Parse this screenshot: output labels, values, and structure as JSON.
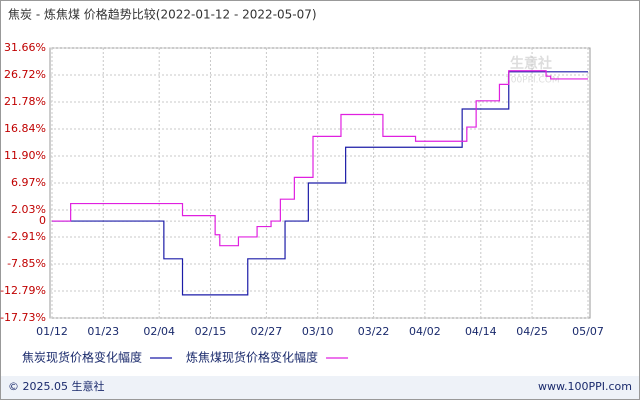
{
  "chart_data": {
    "type": "line",
    "title": "焦炭 - 炼焦煤 价格趋势比较(2022-01-12 - 2022-05-07)",
    "step": true,
    "grid": true,
    "x": [
      "01/12",
      "01/16",
      "02/05",
      "02/06",
      "02/09",
      "02/16",
      "02/17",
      "02/21",
      "02/23",
      "02/25",
      "02/28",
      "03/02",
      "03/03",
      "03/05",
      "03/08",
      "03/09",
      "03/15",
      "03/16",
      "03/24",
      "03/31",
      "04/10",
      "04/11",
      "04/13",
      "04/18",
      "04/20",
      "04/28",
      "04/29",
      "05/07"
    ],
    "series": [
      {
        "name": "焦炭现货价格变化幅度",
        "color": "#1c1ca8",
        "values": [
          0,
          0,
          -6.9,
          -6.9,
          -13.5,
          -13.5,
          -13.5,
          -13.5,
          -6.9,
          -6.9,
          -6.9,
          -6.9,
          0,
          0,
          6.97,
          6.97,
          6.97,
          13.5,
          13.5,
          13.5,
          20.5,
          20.5,
          20.5,
          20.5,
          27.3,
          27.3,
          27.3,
          27.3
        ]
      },
      {
        "name": "炼焦煤现货价格变化幅度",
        "color": "#e020e0",
        "values": [
          0,
          3.2,
          3.2,
          3.2,
          1,
          -2.5,
          -4.5,
          -2.9,
          -2.9,
          -1,
          0,
          4,
          4,
          8,
          8,
          15.5,
          19.5,
          19.5,
          15.5,
          14.6,
          14.6,
          17.2,
          22,
          25,
          27.5,
          26.5,
          26,
          26
        ]
      }
    ],
    "xticks": [
      "01/12",
      "01/23",
      "02/04",
      "02/15",
      "02/27",
      "03/10",
      "03/22",
      "04/02",
      "04/14",
      "04/25",
      "05/07"
    ],
    "ylim": [
      -17.73,
      31.66
    ],
    "yticks": [
      {
        "value": 31.66,
        "label": "31.66%"
      },
      {
        "value": 26.72,
        "label": "26.72%"
      },
      {
        "value": 21.78,
        "label": "21.78%"
      },
      {
        "value": 16.84,
        "label": "16.84%"
      },
      {
        "value": 11.9,
        "label": "11.90%"
      },
      {
        "value": 6.97,
        "label": "6.97%"
      },
      {
        "value": 2.03,
        "label": "2.03%"
      },
      0,
      {
        "value": -2.91,
        "label": "-2.91%"
      },
      {
        "value": -7.85,
        "label": "-7.85%"
      },
      {
        "value": -12.79,
        "label": "-12.79%"
      },
      {
        "value": -17.73,
        "label": "-17.73%"
      }
    ],
    "watermark": [
      "生意社",
      "100PPI.COM"
    ],
    "footer": {
      "left": "© 2025.05 生意社",
      "right": "www.100PPI.com"
    }
  }
}
